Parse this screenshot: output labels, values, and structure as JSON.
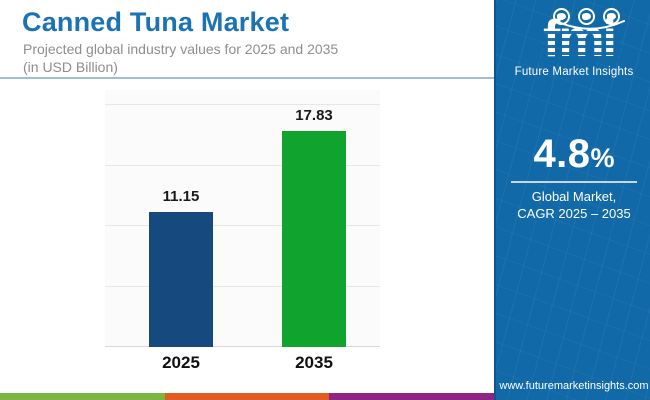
{
  "header": {
    "title": "Canned Tuna Market",
    "subtitle_line1": "Projected global industry values for 2025 and 2035",
    "subtitle_line2": "(in USD Billion)"
  },
  "chart_data": {
    "type": "bar",
    "title": "Canned Tuna Market",
    "subtitle": "Projected global industry values for 2025 and 2035 (in USD Billion)",
    "categories": [
      "2025",
      "2035"
    ],
    "values": [
      11.15,
      17.83
    ],
    "value_labels": [
      "11.15",
      "17.83"
    ],
    "bar_colors": [
      "#164a7e",
      "#10a42f"
    ],
    "unit": "USD Billion",
    "xlabel": "",
    "ylabel": "",
    "ylim": [
      0,
      20
    ],
    "gridline_step": 5,
    "grid": true,
    "legend": false
  },
  "sidebar": {
    "logo": {
      "wordmark": "fmi",
      "tagline": "Future Market Insights",
      "icons": [
        "us-map-globe-icon",
        "eastern-hemisphere-globe-icon",
        "western-hemisphere-globe-icon"
      ]
    },
    "cagr": {
      "value": "4.8",
      "suffix": "%"
    },
    "caption_line1": "Global Market,",
    "caption_line2": "CAGR 2025 – 2035",
    "website": "www.futuremarketinsights.com"
  },
  "footer_bar": {
    "segments": [
      "#7cb53f",
      "#e05c20",
      "#8e2484"
    ]
  },
  "colors": {
    "title_blue": "#1b73b3",
    "subtitle_gray": "#8e8e8e",
    "divider_blue": "#9fbdd6",
    "panel_blue": "#1169a8",
    "label_dark": "#1a1a1a"
  }
}
